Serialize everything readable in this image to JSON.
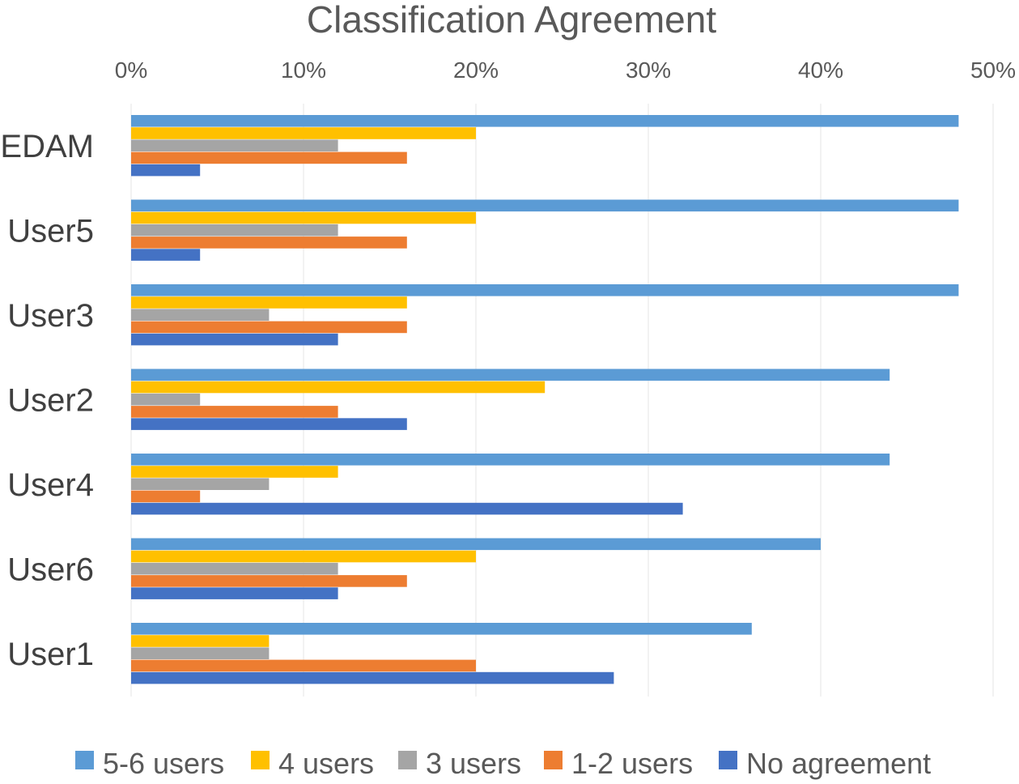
{
  "chart_data": {
    "type": "bar",
    "orientation": "horizontal",
    "title": "Classification Agreement",
    "xlabel": "",
    "ylabel": "",
    "xlim": [
      0,
      50
    ],
    "x_ticks": [
      "0%",
      "10%",
      "20%",
      "30%",
      "40%",
      "50%"
    ],
    "x_tick_values": [
      0,
      10,
      20,
      30,
      40,
      50
    ],
    "x_axis_position": "top",
    "grid": true,
    "legend_position": "bottom",
    "categories": [
      "EDAM",
      "User5",
      "User3",
      "User2",
      "User4",
      "User6",
      "User1"
    ],
    "series": [
      {
        "name": "5-6 users",
        "color": "#5b9bd5",
        "values": [
          48,
          48,
          48,
          44,
          44,
          40,
          36
        ]
      },
      {
        "name": "4 users",
        "color": "#ffc000",
        "values": [
          20,
          20,
          16,
          24,
          12,
          20,
          8
        ]
      },
      {
        "name": "3 users",
        "color": "#a5a5a5",
        "values": [
          12,
          12,
          8,
          4,
          8,
          12,
          8
        ]
      },
      {
        "name": "1-2 users",
        "color": "#ed7d31",
        "values": [
          16,
          16,
          16,
          12,
          4,
          16,
          20
        ]
      },
      {
        "name": "No agreement",
        "color": "#4472c4",
        "values": [
          4,
          4,
          12,
          16,
          32,
          12,
          28
        ]
      }
    ]
  }
}
